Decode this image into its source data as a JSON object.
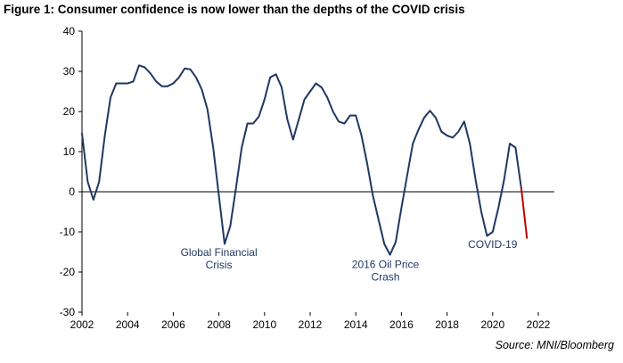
{
  "title": "Figure 1: Consumer confidence is now lower than the depths of the COVID crisis",
  "source": "Source: MNI/Bloomberg",
  "chart_data": {
    "type": "line",
    "title": "Figure 1: Consumer confidence is now lower than the depths of the COVID crisis",
    "xlabel": "",
    "ylabel": "",
    "xlim": [
      2002,
      2022
    ],
    "ylim": [
      -30,
      40
    ],
    "x_ticks": [
      "2002",
      "2004",
      "2006",
      "2008",
      "2010",
      "2012",
      "2014",
      "2016",
      "2018",
      "2020",
      "2022"
    ],
    "y_ticks": [
      "40",
      "30",
      "20",
      "10",
      "0",
      "-10",
      "-20",
      "-30"
    ],
    "grid": false,
    "legend": "none",
    "colors": {
      "main": "#1f3864",
      "latest": "#c00000",
      "annotation": "#1f3864",
      "axis": "#000000"
    },
    "series": [
      {
        "color": "#1f3864",
        "points": [
          [
            2002.0,
            14.5
          ],
          [
            2002.25,
            2.5
          ],
          [
            2002.5,
            -2.0
          ],
          [
            2002.75,
            2.5
          ],
          [
            2003.0,
            14.0
          ],
          [
            2003.25,
            23.5
          ],
          [
            2003.5,
            27.0
          ],
          [
            2003.75,
            27.0
          ],
          [
            2004.0,
            27.0
          ],
          [
            2004.25,
            27.5
          ],
          [
            2004.5,
            31.5
          ],
          [
            2004.75,
            31.0
          ],
          [
            2005.0,
            29.5
          ],
          [
            2005.25,
            27.5
          ],
          [
            2005.5,
            26.3
          ],
          [
            2005.75,
            26.3
          ],
          [
            2006.0,
            27.0
          ],
          [
            2006.25,
            28.5
          ],
          [
            2006.5,
            30.7
          ],
          [
            2006.75,
            30.5
          ],
          [
            2007.0,
            28.5
          ],
          [
            2007.25,
            25.5
          ],
          [
            2007.5,
            20.5
          ],
          [
            2007.75,
            11.0
          ],
          [
            2008.0,
            -1.0
          ],
          [
            2008.25,
            -13.0
          ],
          [
            2008.5,
            -8.5
          ],
          [
            2008.75,
            1.0
          ],
          [
            2009.0,
            11.0
          ],
          [
            2009.25,
            17.0
          ],
          [
            2009.5,
            17.0
          ],
          [
            2009.75,
            18.7
          ],
          [
            2010.0,
            23.0
          ],
          [
            2010.25,
            28.5
          ],
          [
            2010.5,
            29.3
          ],
          [
            2010.75,
            26.0
          ],
          [
            2011.0,
            18.0
          ],
          [
            2011.25,
            13.0
          ],
          [
            2011.5,
            18.0
          ],
          [
            2011.75,
            23.0
          ],
          [
            2012.0,
            25.0
          ],
          [
            2012.25,
            27.0
          ],
          [
            2012.5,
            26.0
          ],
          [
            2012.75,
            23.5
          ],
          [
            2013.0,
            20.0
          ],
          [
            2013.25,
            17.5
          ],
          [
            2013.5,
            17.0
          ],
          [
            2013.75,
            19.0
          ],
          [
            2014.0,
            19.0
          ],
          [
            2014.25,
            14.0
          ],
          [
            2014.5,
            7.0
          ],
          [
            2014.75,
            -1.0
          ],
          [
            2015.0,
            -7.0
          ],
          [
            2015.25,
            -13.0
          ],
          [
            2015.5,
            -15.7
          ],
          [
            2015.75,
            -12.5
          ],
          [
            2016.0,
            -4.0
          ],
          [
            2016.25,
            4.0
          ],
          [
            2016.5,
            12.0
          ],
          [
            2016.75,
            15.5
          ],
          [
            2017.0,
            18.5
          ],
          [
            2017.25,
            20.2
          ],
          [
            2017.5,
            18.5
          ],
          [
            2017.75,
            15.0
          ],
          [
            2018.0,
            14.0
          ],
          [
            2018.25,
            13.5
          ],
          [
            2018.5,
            15.0
          ],
          [
            2018.75,
            17.5
          ],
          [
            2019.0,
            12.0
          ],
          [
            2019.25,
            3.0
          ],
          [
            2019.5,
            -5.0
          ],
          [
            2019.75,
            -11.0
          ],
          [
            2020.0,
            -10.0
          ],
          [
            2020.25,
            -4.0
          ],
          [
            2020.5,
            3.0
          ],
          [
            2020.75,
            12.0
          ],
          [
            2021.0,
            11.0
          ],
          [
            2021.25,
            1.0
          ]
        ]
      },
      {
        "color": "#c00000",
        "points": [
          [
            2021.25,
            1.0
          ],
          [
            2021.5,
            -11.5
          ]
        ]
      }
    ],
    "annotations": [
      {
        "lines": [
          "Global Financial",
          "Crisis"
        ],
        "x": 2008.0,
        "y": -16.0
      },
      {
        "lines": [
          "2016 Oil Price",
          "Crash"
        ],
        "x": 2015.3,
        "y": -19.0
      },
      {
        "lines": [
          "COVID-19"
        ],
        "x": 2020.0,
        "y": -14.0
      }
    ]
  }
}
